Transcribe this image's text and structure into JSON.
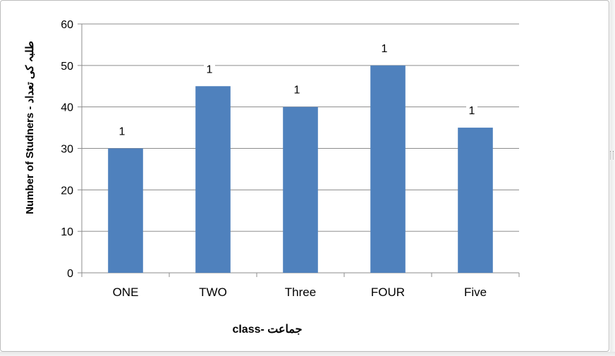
{
  "chart_data": {
    "type": "bar",
    "categories": [
      "ONE",
      "TWO",
      "Three",
      "FOUR",
      "Five"
    ],
    "values": [
      30,
      45,
      40,
      50,
      35
    ],
    "data_labels": [
      "1",
      "1",
      "1",
      "1",
      "1"
    ],
    "xlabel": "class- جماعت",
    "ylabel": "Number of Studners - طلبہ کی تعداد",
    "ylim": [
      0,
      60
    ],
    "yticks": [
      0,
      10,
      20,
      30,
      40,
      50,
      60
    ],
    "grid": true,
    "legend": "none",
    "bar_color": "#4f81bd"
  }
}
